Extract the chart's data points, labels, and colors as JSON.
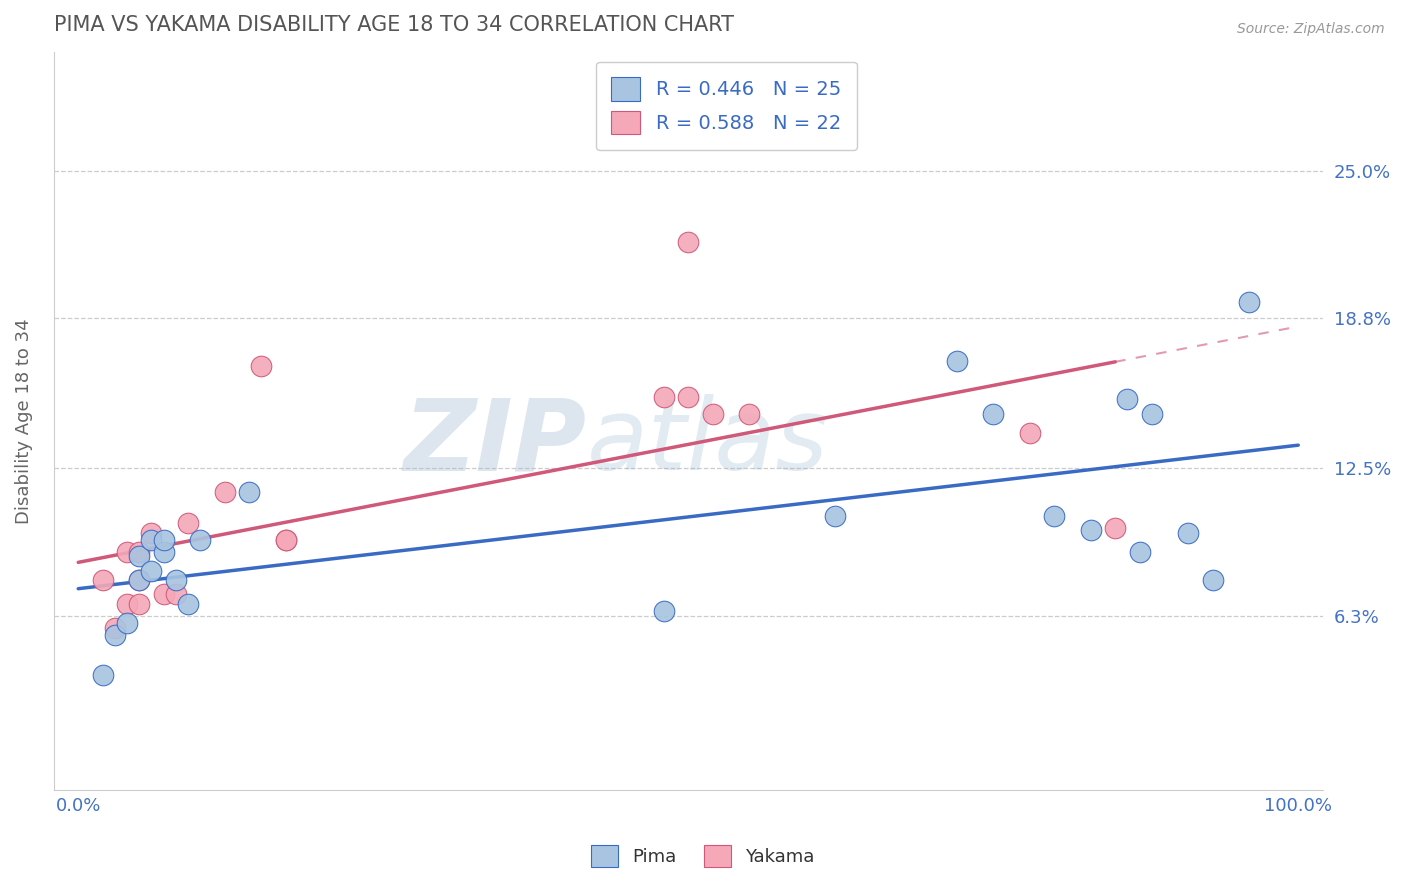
{
  "title": "PIMA VS YAKAMA DISABILITY AGE 18 TO 34 CORRELATION CHART",
  "source_text": "Source: ZipAtlas.com",
  "xlabel": "",
  "ylabel": "Disability Age 18 to 34",
  "xlim": [
    -0.02,
    1.02
  ],
  "ylim": [
    -0.01,
    0.3
  ],
  "yticks": [
    0.063,
    0.125,
    0.188,
    0.25
  ],
  "ytick_labels": [
    "6.3%",
    "12.5%",
    "18.8%",
    "25.0%"
  ],
  "xtick_labels_show": [
    "0.0%",
    "100.0%"
  ],
  "xtick_positions_show": [
    0.0,
    1.0
  ],
  "xtick_positions_all": [
    0.0,
    0.1,
    0.2,
    0.3,
    0.4,
    0.5,
    0.6,
    0.7,
    0.8,
    0.9,
    1.0
  ],
  "pima_color": "#a8c4e0",
  "yakama_color": "#f4a8b8",
  "pima_line_color": "#3a6bc4",
  "yakama_line_color": "#d05878",
  "pima_R": 0.446,
  "pima_N": 25,
  "yakama_R": 0.588,
  "yakama_N": 22,
  "watermark_zip": "ZIP",
  "watermark_atlas": "atlas",
  "legend_pima_label": "R = 0.446   N = 25",
  "legend_yakama_label": "R = 0.588   N = 22",
  "pima_x": [
    0.02,
    0.03,
    0.04,
    0.05,
    0.05,
    0.06,
    0.06,
    0.07,
    0.07,
    0.08,
    0.09,
    0.1,
    0.14,
    0.48,
    0.62,
    0.72,
    0.75,
    0.8,
    0.83,
    0.86,
    0.87,
    0.88,
    0.91,
    0.93,
    0.96
  ],
  "pima_y": [
    0.038,
    0.055,
    0.06,
    0.078,
    0.088,
    0.095,
    0.082,
    0.09,
    0.095,
    0.078,
    0.068,
    0.095,
    0.115,
    0.065,
    0.105,
    0.17,
    0.148,
    0.105,
    0.099,
    0.154,
    0.09,
    0.148,
    0.098,
    0.078,
    0.195
  ],
  "yakama_x": [
    0.02,
    0.03,
    0.04,
    0.04,
    0.05,
    0.05,
    0.05,
    0.06,
    0.07,
    0.08,
    0.09,
    0.12,
    0.15,
    0.17,
    0.17,
    0.48,
    0.5,
    0.5,
    0.52,
    0.55,
    0.78,
    0.85
  ],
  "yakama_y": [
    0.078,
    0.058,
    0.068,
    0.09,
    0.068,
    0.078,
    0.09,
    0.098,
    0.072,
    0.072,
    0.102,
    0.115,
    0.168,
    0.095,
    0.095,
    0.155,
    0.22,
    0.155,
    0.148,
    0.148,
    0.14,
    0.1
  ],
  "background_color": "#ffffff",
  "grid_color": "#cccccc",
  "title_color": "#555555",
  "axis_label_color": "#666666",
  "tick_label_color": "#4472c4"
}
